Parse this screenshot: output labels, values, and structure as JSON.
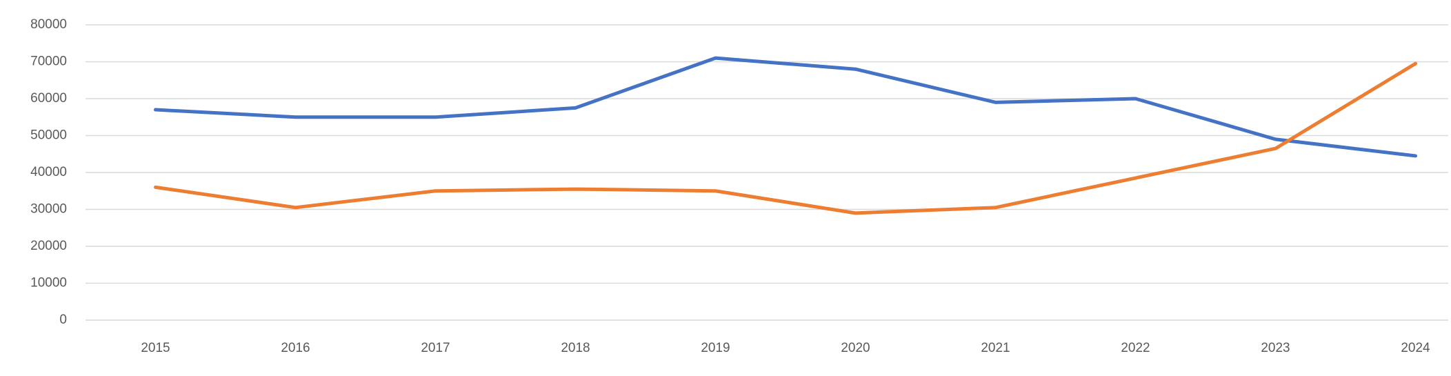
{
  "chart_data": {
    "type": "line",
    "categories": [
      "2015",
      "2016",
      "2017",
      "2018",
      "2019",
      "2020",
      "2021",
      "2022",
      "2023",
      "2024"
    ],
    "series": [
      {
        "color": "#4472c4",
        "values": [
          57000,
          55000,
          55000,
          57500,
          71000,
          68000,
          59000,
          60000,
          49000,
          44500
        ]
      },
      {
        "color": "#ed7d31",
        "values": [
          36000,
          30500,
          35000,
          35500,
          35000,
          29000,
          30500,
          38500,
          46500,
          69500
        ]
      }
    ],
    "ylim": [
      0,
      80000
    ],
    "yticks": [
      0,
      10000,
      20000,
      30000,
      40000,
      50000,
      60000,
      70000,
      80000
    ],
    "grid": true
  }
}
